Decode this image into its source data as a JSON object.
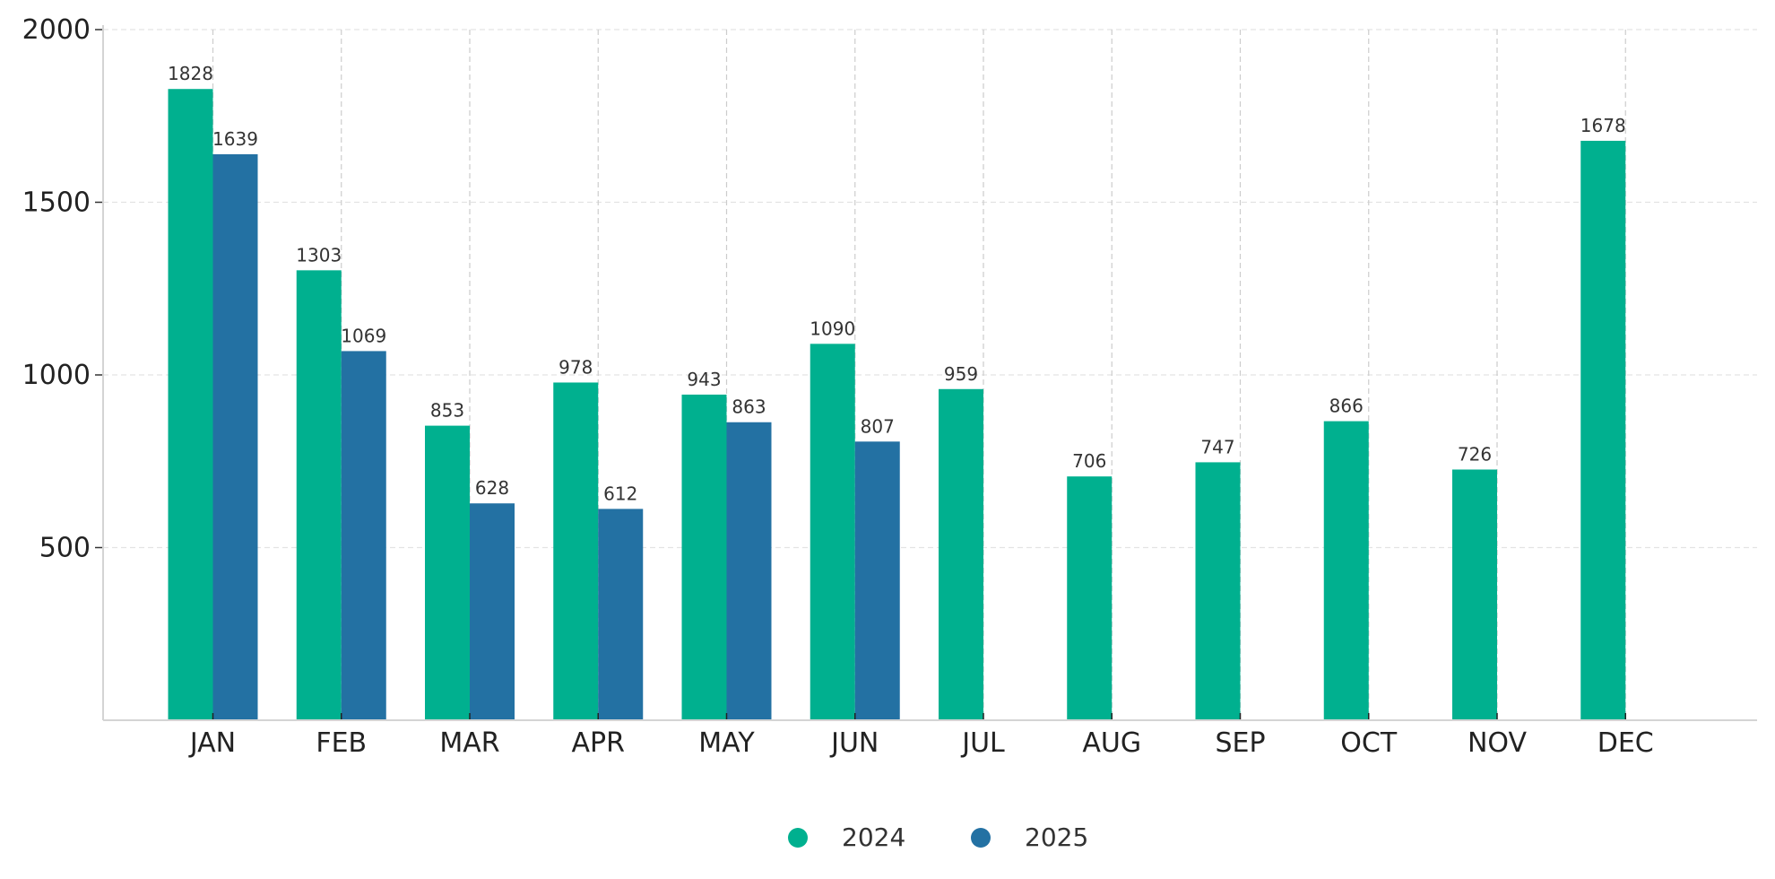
{
  "chart_data": {
    "type": "bar",
    "title": "",
    "xlabel": "",
    "ylabel": "",
    "categories": [
      "JAN",
      "FEB",
      "MAR",
      "APR",
      "MAY",
      "JUN",
      "JUL",
      "AUG",
      "SEP",
      "OCT",
      "NOV",
      "DEC"
    ],
    "series": [
      {
        "name": "2024",
        "color": "#00b08f",
        "values": [
          1828,
          1303,
          853,
          978,
          943,
          1090,
          959,
          706,
          747,
          866,
          726,
          1678
        ]
      },
      {
        "name": "2025",
        "color": "#2371a3",
        "values": [
          1639,
          1069,
          628,
          612,
          863,
          807,
          null,
          null,
          null,
          null,
          null,
          null
        ]
      }
    ],
    "ylim": [
      0,
      2000
    ],
    "yticks": [
      500,
      1000,
      1500,
      2000
    ],
    "grid": "horizontal dashed, vertical dashed at 2024 bar right edges",
    "legend": {
      "placement": "bottom-center",
      "marker": "circle"
    },
    "data_labels": true
  }
}
